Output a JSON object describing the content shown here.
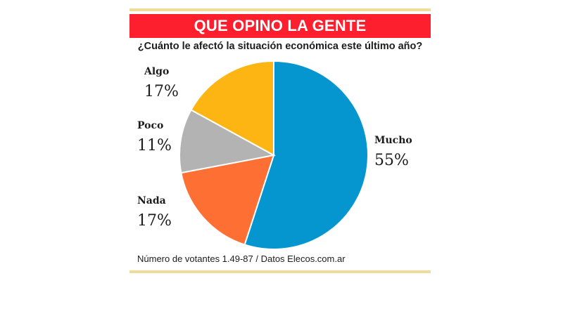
{
  "header": {
    "title": "QUE OPINO LA GENTE"
  },
  "footer": {
    "note": "Número de votantes 1.49-87 / Datos Elecos.com.ar"
  },
  "colors": {
    "banner": "#fd1f2d",
    "gold_rule": "#f1dc9a",
    "mucho": "#0596d0",
    "nada": "#fe6f34",
    "poco": "#b3b3b3",
    "algo": "#fdb513"
  },
  "chart_data": {
    "type": "pie",
    "title": "¿Cuánto le afectó la situación económica este último año?",
    "slices": [
      {
        "label": "Mucho",
        "value": 55,
        "display": "55%",
        "color": "#0596d0"
      },
      {
        "label": "Nada",
        "value": 17,
        "display": "17%",
        "color": "#fe6f34"
      },
      {
        "label": "Poco",
        "value": 11,
        "display": "11%",
        "color": "#b3b3b3"
      },
      {
        "label": "Algo",
        "value": 17,
        "display": "17%",
        "color": "#fdb513"
      }
    ]
  }
}
